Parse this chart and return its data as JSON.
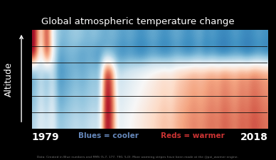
{
  "title": "Global atmospheric temperature change",
  "year_start": 1979,
  "year_end": 2018,
  "ylabel": "Altitude",
  "legend_blue": "Blues = cooler",
  "legend_red": "Reds = warmer",
  "footnote": "Data: Created in Blue numbers and RMS (5,7, 177, 790, 5,0). More warming stripes have been made at the @poi_warmer engine.",
  "background_color": "#000000",
  "n_years": 40,
  "n_alt_low": 4,
  "n_alt_high": 2,
  "figsize": [
    3.88,
    2.25
  ],
  "dpi": 100,
  "title_color": "#ffffff",
  "title_fontsize": 9.5,
  "label_fontsize": 9,
  "year_fontsize": 10,
  "legend_fontsize": 7.5,
  "footnote_fontsize": 3.2,
  "legend_blue_color": "#6688bb",
  "legend_red_color": "#cc3333",
  "upper_data": [
    [
      0.95,
      -0.2,
      0.9,
      0.0,
      -0.55,
      -0.5,
      -0.45,
      -0.5,
      -0.55,
      -0.5,
      -0.55,
      -0.6,
      -0.5,
      -0.55,
      -0.6,
      -0.65,
      -0.6,
      -0.65,
      -0.7,
      -0.65,
      -0.6,
      -0.65,
      -0.7,
      -0.65,
      -0.6,
      -0.65,
      -0.7,
      -0.65,
      -0.6,
      -0.7,
      -0.65,
      -0.7,
      -0.75,
      -0.7,
      -0.65,
      -0.7,
      -0.75,
      -0.7,
      -0.65,
      -0.7
    ],
    [
      0.9,
      0.0,
      0.85,
      -0.1,
      -0.4,
      -0.45,
      -0.4,
      -0.35,
      -0.4,
      -0.45,
      -0.4,
      -0.45,
      -0.5,
      -0.45,
      -0.5,
      -0.55,
      -0.5,
      -0.55,
      -0.6,
      -0.55,
      -0.5,
      -0.55,
      -0.6,
      -0.55,
      -0.5,
      -0.55,
      -0.6,
      -0.55,
      -0.5,
      -0.6,
      -0.55,
      -0.6,
      -0.65,
      -0.6,
      -0.55,
      -0.6,
      -0.65,
      -0.6,
      -0.55,
      -0.6
    ]
  ],
  "lower_data": [
    [
      -0.3,
      -0.1,
      -0.25,
      -0.05,
      -0.4,
      -0.35,
      -0.3,
      -0.25,
      -0.3,
      -0.25,
      -0.2,
      -0.25,
      0.92,
      0.7,
      -0.1,
      -0.05,
      0.0,
      0.05,
      0.1,
      0.15,
      0.2,
      0.25,
      0.3,
      0.25,
      0.35,
      0.4,
      0.45,
      0.5,
      0.45,
      0.5,
      0.55,
      0.5,
      0.6,
      0.55,
      0.5,
      0.6,
      0.55,
      0.65,
      0.6,
      0.55
    ],
    [
      -0.4,
      -0.15,
      -0.35,
      -0.1,
      -0.5,
      -0.45,
      -0.4,
      -0.35,
      -0.4,
      -0.35,
      -0.3,
      -0.35,
      0.95,
      0.75,
      -0.15,
      -0.1,
      -0.05,
      0.0,
      0.05,
      0.1,
      0.15,
      0.2,
      0.25,
      0.2,
      0.3,
      0.35,
      0.4,
      0.45,
      0.4,
      0.45,
      0.5,
      0.45,
      0.55,
      0.5,
      0.45,
      0.55,
      0.5,
      0.6,
      0.55,
      0.5
    ],
    [
      -0.45,
      -0.2,
      -0.4,
      -0.15,
      -0.55,
      -0.5,
      -0.45,
      -0.4,
      -0.45,
      -0.4,
      -0.35,
      -0.4,
      0.88,
      0.65,
      -0.2,
      -0.15,
      -0.1,
      -0.05,
      0.0,
      0.05,
      0.1,
      0.15,
      0.2,
      0.15,
      0.25,
      0.3,
      0.35,
      0.4,
      0.35,
      0.4,
      0.45,
      0.4,
      0.5,
      0.45,
      0.4,
      0.5,
      0.45,
      0.55,
      0.5,
      0.45
    ],
    [
      -0.5,
      -0.25,
      -0.45,
      -0.2,
      -0.6,
      -0.55,
      -0.5,
      -0.45,
      -0.5,
      -0.45,
      -0.4,
      -0.45,
      0.8,
      0.6,
      -0.25,
      -0.2,
      -0.15,
      -0.1,
      -0.05,
      0.0,
      0.05,
      0.1,
      0.15,
      0.1,
      0.2,
      0.25,
      0.3,
      0.35,
      0.3,
      0.35,
      0.4,
      0.35,
      0.45,
      0.4,
      0.35,
      0.45,
      0.4,
      0.5,
      0.45,
      0.4
    ]
  ]
}
